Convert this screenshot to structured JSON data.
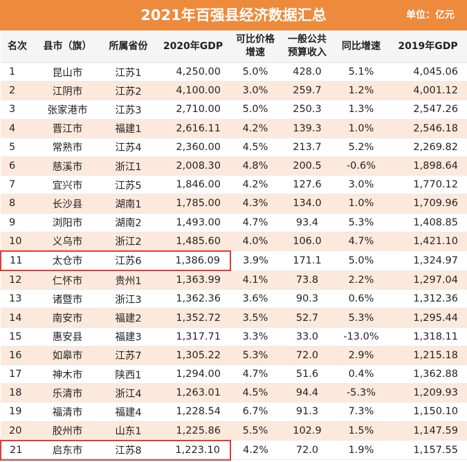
{
  "header": {
    "title": "2021年百强县经济数据汇总",
    "unit": "单位：亿元"
  },
  "columns": [
    {
      "line1": "名次",
      "line2": ""
    },
    {
      "line1": "县市（旗）",
      "line2": ""
    },
    {
      "line1": "所属省份",
      "line2": ""
    },
    {
      "line1": "2020年GDP",
      "line2": ""
    },
    {
      "line1": "可比价格",
      "line2": "增速"
    },
    {
      "line1": "一般公共",
      "line2": "预算收入"
    },
    {
      "line1": "同比增速",
      "line2": ""
    },
    {
      "line1": "2019年GDP",
      "line2": ""
    }
  ],
  "rows": [
    {
      "rank": "1",
      "city": "昆山市",
      "prov": "江苏1",
      "gdp2020": "4,250.00",
      "growth": "5.0%",
      "revenue": "428.0",
      "yoy": "5.1%",
      "gdp2019": "4,045.06",
      "highlight": false
    },
    {
      "rank": "2",
      "city": "江阴市",
      "prov": "江苏2",
      "gdp2020": "4,100.00",
      "growth": "3.0%",
      "revenue": "259.7",
      "yoy": "1.2%",
      "gdp2019": "4,001.12",
      "highlight": false
    },
    {
      "rank": "3",
      "city": "张家港市",
      "prov": "江苏3",
      "gdp2020": "2,710.00",
      "growth": "5.0%",
      "revenue": "250.3",
      "yoy": "1.3%",
      "gdp2019": "2,547.26",
      "highlight": false
    },
    {
      "rank": "4",
      "city": "晋江市",
      "prov": "福建1",
      "gdp2020": "2,616.11",
      "growth": "4.2%",
      "revenue": "139.3",
      "yoy": "1.0%",
      "gdp2019": "2,546.18",
      "highlight": false
    },
    {
      "rank": "5",
      "city": "常熟市",
      "prov": "江苏4",
      "gdp2020": "2,360.00",
      "growth": "4.5%",
      "revenue": "213.7",
      "yoy": "5.2%",
      "gdp2019": "2,269.82",
      "highlight": false
    },
    {
      "rank": "6",
      "city": "慈溪市",
      "prov": "浙江1",
      "gdp2020": "2,008.30",
      "growth": "4.8%",
      "revenue": "200.5",
      "yoy": "-0.6%",
      "gdp2019": "1,898.64",
      "highlight": false
    },
    {
      "rank": "7",
      "city": "宜兴市",
      "prov": "江苏5",
      "gdp2020": "1,846.00",
      "growth": "4.2%",
      "revenue": "127.6",
      "yoy": "3.0%",
      "gdp2019": "1,770.12",
      "highlight": false
    },
    {
      "rank": "8",
      "city": "长沙县",
      "prov": "湖南1",
      "gdp2020": "1,785.00",
      "growth": "4.3%",
      "revenue": "134.0",
      "yoy": "1.0%",
      "gdp2019": "1,709.96",
      "highlight": false
    },
    {
      "rank": "9",
      "city": "浏阳市",
      "prov": "湖南2",
      "gdp2020": "1,493.00",
      "growth": "4.7%",
      "revenue": "93.4",
      "yoy": "5.3%",
      "gdp2019": "1,408.85",
      "highlight": false
    },
    {
      "rank": "10",
      "city": "义乌市",
      "prov": "浙江2",
      "gdp2020": "1,485.60",
      "growth": "4.0%",
      "revenue": "106.0",
      "yoy": "4.7%",
      "gdp2019": "1,421.10",
      "highlight": false
    },
    {
      "rank": "11",
      "city": "太仓市",
      "prov": "江苏6",
      "gdp2020": "1,386.09",
      "growth": "3.9%",
      "revenue": "171.1",
      "yoy": "5.0%",
      "gdp2019": "1,324.97",
      "highlight": true
    },
    {
      "rank": "12",
      "city": "仁怀市",
      "prov": "贵州1",
      "gdp2020": "1,363.99",
      "growth": "4.1%",
      "revenue": "73.8",
      "yoy": "2.2%",
      "gdp2019": "1,297.04",
      "highlight": false
    },
    {
      "rank": "13",
      "city": "诸暨市",
      "prov": "浙江3",
      "gdp2020": "1,362.36",
      "growth": "3.6%",
      "revenue": "90.3",
      "yoy": "0.6%",
      "gdp2019": "1,312.36",
      "highlight": false
    },
    {
      "rank": "14",
      "city": "南安市",
      "prov": "福建2",
      "gdp2020": "1,352.72",
      "growth": "3.5%",
      "revenue": "52.7",
      "yoy": "5.3%",
      "gdp2019": "1,295.44",
      "highlight": false
    },
    {
      "rank": "15",
      "city": "惠安县",
      "prov": "福建3",
      "gdp2020": "1,317.71",
      "growth": "3.3%",
      "revenue": "33.0",
      "yoy": "-13.0%",
      "gdp2019": "1,318.11",
      "highlight": false
    },
    {
      "rank": "16",
      "city": "如皋市",
      "prov": "江苏7",
      "gdp2020": "1,305.22",
      "growth": "5.3%",
      "revenue": "72.0",
      "yoy": "2.9%",
      "gdp2019": "1,215.18",
      "highlight": false
    },
    {
      "rank": "17",
      "city": "神木市",
      "prov": "陕西1",
      "gdp2020": "1,294.00",
      "growth": "4.7%",
      "revenue": "51.6",
      "yoy": "0.4%",
      "gdp2019": "1,362.88",
      "highlight": false
    },
    {
      "rank": "18",
      "city": "乐清市",
      "prov": "浙江4",
      "gdp2020": "1,263.01",
      "growth": "4.5%",
      "revenue": "94.4",
      "yoy": "-5.3%",
      "gdp2019": "1,209.93",
      "highlight": false
    },
    {
      "rank": "19",
      "city": "福清市",
      "prov": "福建4",
      "gdp2020": "1,228.54",
      "growth": "6.7%",
      "revenue": "91.3",
      "yoy": "7.3%",
      "gdp2019": "1,150.10",
      "highlight": false
    },
    {
      "rank": "20",
      "city": "胶州市",
      "prov": "山东1",
      "gdp2020": "1,225.86",
      "growth": "5.5%",
      "revenue": "102.9",
      "yoy": "1.5%",
      "gdp2019": "1,147.59",
      "highlight": false
    },
    {
      "rank": "21",
      "city": "启东市",
      "prov": "江苏8",
      "gdp2020": "1,223.10",
      "growth": "4.2%",
      "revenue": "72.0",
      "yoy": "1.9%",
      "gdp2019": "1,157.55",
      "highlight": true
    }
  ]
}
